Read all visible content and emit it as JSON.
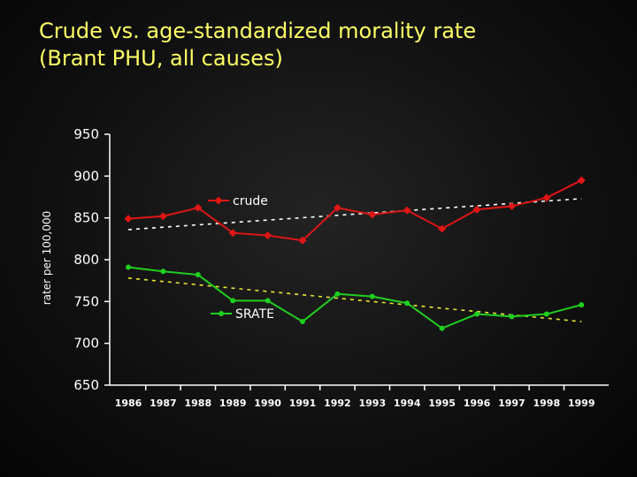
{
  "title": {
    "line1": "Crude vs. age-standardized morality rate",
    "line2": "(Brant PHU, all causes)"
  },
  "colors": {
    "title": "#ffff66",
    "crude": "#e01515",
    "srate": "#1fd01f",
    "crude_trend": "#ffffff",
    "srate_trend": "#e8e830",
    "axis": "#ffffff"
  },
  "chart_data": {
    "type": "line",
    "title": "Crude vs. age-standardized morality rate (Brant PHU, all causes)",
    "xlabel": "",
    "ylabel": "rater per 100,000",
    "ylim": [
      650,
      950
    ],
    "yticks": [
      650,
      700,
      750,
      800,
      850,
      900,
      950
    ],
    "grid": false,
    "categories": [
      "1986",
      "1987",
      "1988",
      "1989",
      "1990",
      "1991",
      "1992",
      "1993",
      "1994",
      "1995",
      "1996",
      "1997",
      "1998",
      "1999"
    ],
    "series": [
      {
        "name": "crude",
        "marker": "diamond",
        "values": [
          849,
          852,
          862,
          832,
          829,
          823,
          862,
          854,
          859,
          837,
          860,
          864,
          874,
          895
        ],
        "trend": [
          836,
          873
        ]
      },
      {
        "name": "SRATE",
        "marker": "circle",
        "values": [
          791,
          786,
          782,
          751,
          751,
          726,
          759,
          756,
          748,
          718,
          735,
          732,
          735,
          746
        ],
        "trend": [
          778,
          726
        ]
      }
    ],
    "legend_placement": "inline"
  }
}
